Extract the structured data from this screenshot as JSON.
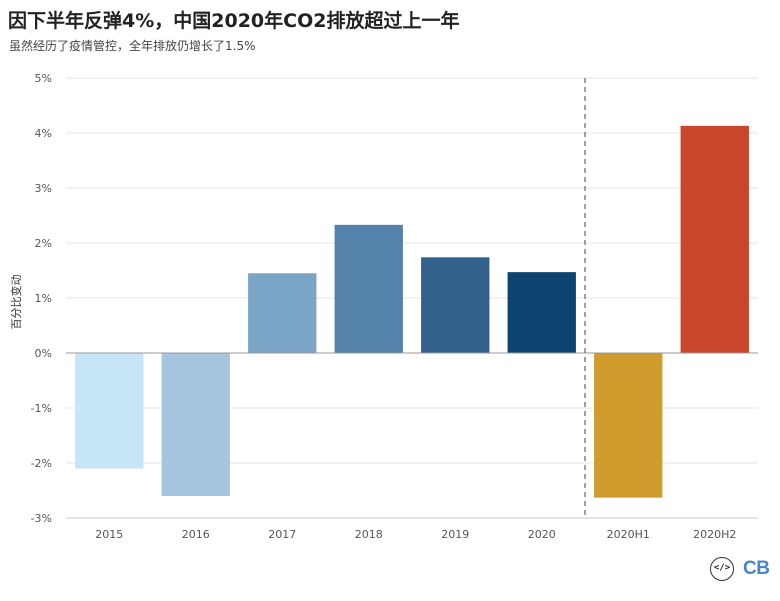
{
  "chart_data": {
    "type": "bar",
    "title": "因下半年反弹4%，中国2020年CO2排放超过上一年",
    "subtitle": "虽然经历了疫情管控，全年排放仍增长了1.5%",
    "ylabel": "百分比变动",
    "ylim": [
      -3,
      5
    ],
    "yticks": [
      5,
      4,
      3,
      2,
      1,
      0,
      -1,
      -2,
      -3
    ],
    "ytick_labels": [
      "5%",
      "4%",
      "3%",
      "2%",
      "1%",
      "0%",
      "-1%",
      "-2%",
      "-3%"
    ],
    "grid": true,
    "categories": [
      "2015",
      "2016",
      "2017",
      "2018",
      "2019",
      "2020",
      "2020H1",
      "2020H2"
    ],
    "values": [
      -2.1,
      -2.6,
      1.45,
      2.33,
      1.74,
      1.47,
      -2.63,
      4.13
    ],
    "colors": [
      "#c6e5f7",
      "#a3c5de",
      "#7aa5c7",
      "#5582aa",
      "#31608a",
      "#0b4470",
      "#cf9b2d",
      "#c9452b"
    ],
    "divider_after_category": "2020"
  },
  "logo": {
    "symbol": "</>",
    "text": "CB"
  }
}
